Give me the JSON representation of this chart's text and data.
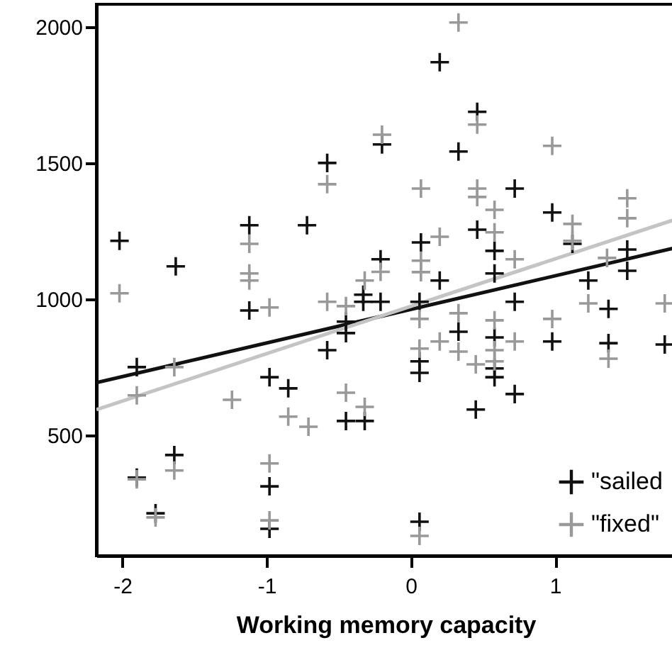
{
  "chart_data": {
    "type": "scatter",
    "xlabel": "Working memory capacity",
    "xlim": [
      -2.18,
      1.83
    ],
    "ylim": [
      57,
      2083
    ],
    "xticks": [
      -2,
      -1,
      0,
      1
    ],
    "yticks": [
      500,
      1000,
      1500,
      2000
    ],
    "grid": false,
    "legend": "bottom right",
    "marker": "cross",
    "series": [
      {
        "name": "\"sailed",
        "color": "#111111",
        "x": [
          -2.02,
          -1.63,
          -1.12,
          -0.58,
          -0.72,
          -0.21,
          0.2,
          0.46,
          -0.2,
          0.33,
          0.72,
          0.98,
          0.07,
          0.46,
          0.58,
          1.12,
          1.5,
          1.5,
          0.58,
          1.23,
          0.2,
          -1.12,
          -0.33,
          -0.33,
          -0.45,
          -0.45,
          -0.21,
          -0.58,
          -1.9,
          -0.98,
          -0.85,
          -0.45,
          -0.32,
          -1.64,
          -1.9,
          -1.77,
          -0.98,
          -0.98,
          0.72,
          1.37,
          0.06,
          0.33,
          0.58,
          0.98,
          1.37,
          1.76,
          0.06,
          0.06,
          0.58,
          0.58,
          0.72,
          0.45,
          0.06
        ],
        "values": [
          1214,
          1120,
          1271,
          1500,
          1271,
          1146,
          1870,
          1688,
          1568,
          1542,
          1406,
          1318,
          1208,
          1255,
          1177,
          1203,
          1182,
          1104,
          1094,
          1068,
          1068,
          958,
          1016,
          990,
          917,
          875,
          990,
          812,
          750,
          713,
          672,
          552,
          552,
          427,
          344,
          213,
          312,
          156,
          990,
          964,
          990,
          880,
          859,
          844,
          838,
          833,
          771,
          729,
          745,
          713,
          651,
          594,
          182
        ]
      },
      {
        "name": "\"fixed\"",
        "color": "#999999",
        "x": [
          -1.12,
          -1.12,
          -1.12,
          -0.58,
          -0.21,
          -0.32,
          0.33,
          0.46,
          -0.2,
          0.98,
          0.07,
          0.46,
          0.46,
          0.58,
          1.5,
          1.5,
          0.2,
          0.58,
          1.12,
          1.12,
          0.07,
          0.07,
          0.72,
          1.36,
          -2.02,
          -0.98,
          -0.58,
          -0.45,
          -1.64,
          -1.9,
          -1.24,
          -0.45,
          -0.32,
          -0.85,
          -0.71,
          -1.64,
          -1.9,
          -1.77,
          -0.98,
          -0.98,
          1.23,
          1.76,
          0.06,
          0.33,
          0.58,
          0.98,
          0.2,
          0.72,
          1.37,
          0.06,
          0.33,
          0.58,
          0.45,
          0.58,
          0.06
        ],
        "values": [
          1203,
          1094,
          1068,
          1422,
          1100,
          1068,
          2016,
          1641,
          1604,
          1563,
          1406,
          1406,
          1375,
          1328,
          1370,
          1297,
          1229,
          1245,
          1276,
          1214,
          1141,
          1099,
          1146,
          1151,
          1021,
          969,
          990,
          974,
          750,
          646,
          630,
          656,
          604,
          568,
          531,
          370,
          338,
          198,
          396,
          187,
          984,
          984,
          927,
          948,
          922,
          927,
          844,
          844,
          781,
          818,
          807,
          812,
          760,
          771,
          130
        ]
      },
      {
        "type": "line",
        "marker": "none",
        "color": "#111111",
        "x": [
          -2.18,
          1.83
        ],
        "values": [
          693,
          1188
        ]
      },
      {
        "type": "line",
        "marker": "none",
        "color": "#c4c4c4",
        "x": [
          -2.18,
          1.83
        ],
        "values": [
          594,
          1292
        ]
      }
    ]
  }
}
